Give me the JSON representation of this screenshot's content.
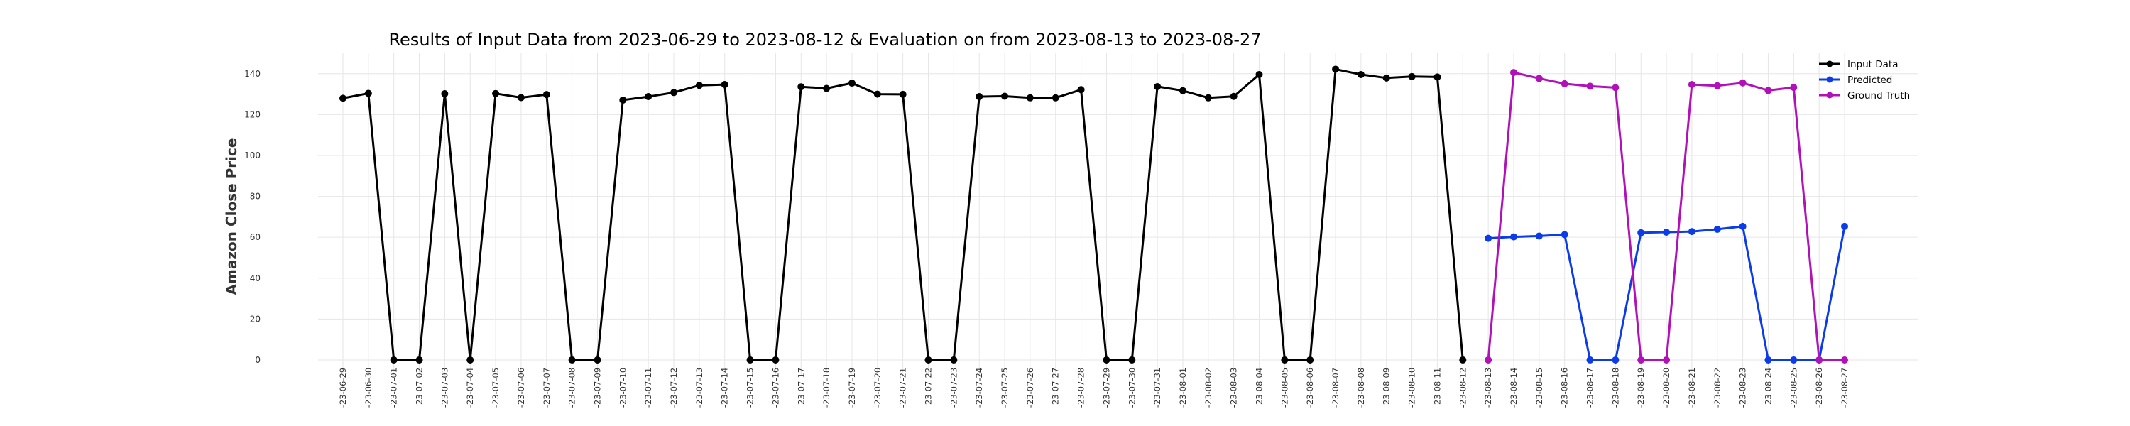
{
  "chart_data": {
    "type": "line",
    "title": "Results of Input Data from 2023-06-29 to 2023-08-12 & Evaluation on from 2023-08-13 to 2023-08-27",
    "xlabel": "",
    "ylabel": "Amazon Close Price",
    "ylim": [
      -8,
      150
    ],
    "yticks": [
      0,
      20,
      40,
      60,
      80,
      100,
      120,
      140
    ],
    "grid": true,
    "legend_position": "top-right",
    "categories": [
      "2023-06-29",
      "2023-06-30",
      "2023-07-01",
      "2023-07-02",
      "2023-07-03",
      "2023-07-04",
      "2023-07-05",
      "2023-07-06",
      "2023-07-07",
      "2023-07-08",
      "2023-07-09",
      "2023-07-10",
      "2023-07-11",
      "2023-07-12",
      "2023-07-13",
      "2023-07-14",
      "2023-07-15",
      "2023-07-16",
      "2023-07-17",
      "2023-07-18",
      "2023-07-19",
      "2023-07-20",
      "2023-07-21",
      "2023-07-22",
      "2023-07-23",
      "2023-07-24",
      "2023-07-25",
      "2023-07-26",
      "2023-07-27",
      "2023-07-28",
      "2023-07-29",
      "2023-07-30",
      "2023-07-31",
      "2023-08-01",
      "2023-08-02",
      "2023-08-03",
      "2023-08-04",
      "2023-08-05",
      "2023-08-06",
      "2023-08-07",
      "2023-08-08",
      "2023-08-09",
      "2023-08-10",
      "2023-08-11",
      "2023-08-12",
      "2023-08-13",
      "2023-08-14",
      "2023-08-15",
      "2023-08-16",
      "2023-08-17",
      "2023-08-18",
      "2023-08-19",
      "2023-08-20",
      "2023-08-21",
      "2023-08-22",
      "2023-08-23",
      "2023-08-24",
      "2023-08-25",
      "2023-08-26",
      "2023-08-27"
    ],
    "tick_labels": [
      "-23-06-29",
      "-23-06-30",
      "-23-07-01",
      "-23-07-02",
      "-23-07-03",
      "-23-07-04",
      "-23-07-05",
      "-23-07-06",
      "-23-07-07",
      "-23-07-08",
      "-23-07-09",
      "-23-07-10",
      "-23-07-11",
      "-23-07-12",
      "-23-07-13",
      "-23-07-14",
      "-23-07-15",
      "-23-07-16",
      "-23-07-17",
      "-23-07-18",
      "-23-07-19",
      "-23-07-20",
      "-23-07-21",
      "-23-07-22",
      "-23-07-23",
      "-23-07-24",
      "-23-07-25",
      "-23-07-26",
      "-23-07-27",
      "-23-07-28",
      "-23-07-29",
      "-23-07-30",
      "-23-07-31",
      "-23-08-01",
      "-23-08-02",
      "-23-08-03",
      "-23-08-04",
      "-23-08-05",
      "-23-08-06",
      "-23-08-07",
      "-23-08-08",
      "-23-08-09",
      "-23-08-10",
      "-23-08-11",
      "-23-08-12",
      "-23-08-13",
      "-23-08-14",
      "-23-08-15",
      "-23-08-16",
      "-23-08-17",
      "-23-08-18",
      "-23-08-19",
      "-23-08-20",
      "-23-08-21",
      "-23-08-22",
      "-23-08-23",
      "-23-08-24",
      "-23-08-25",
      "-23-08-26",
      "-23-08-27"
    ],
    "series": [
      {
        "name": "Input Data",
        "color": "#000000",
        "x": [
          "2023-06-29",
          "2023-06-30",
          "2023-07-01",
          "2023-07-02",
          "2023-07-03",
          "2023-07-04",
          "2023-07-05",
          "2023-07-06",
          "2023-07-07",
          "2023-07-08",
          "2023-07-09",
          "2023-07-10",
          "2023-07-11",
          "2023-07-12",
          "2023-07-13",
          "2023-07-14",
          "2023-07-15",
          "2023-07-16",
          "2023-07-17",
          "2023-07-18",
          "2023-07-19",
          "2023-07-20",
          "2023-07-21",
          "2023-07-22",
          "2023-07-23",
          "2023-07-24",
          "2023-07-25",
          "2023-07-26",
          "2023-07-27",
          "2023-07-28",
          "2023-07-29",
          "2023-07-30",
          "2023-07-31",
          "2023-08-01",
          "2023-08-02",
          "2023-08-03",
          "2023-08-04",
          "2023-08-05",
          "2023-08-06",
          "2023-08-07",
          "2023-08-08",
          "2023-08-09",
          "2023-08-10",
          "2023-08-11",
          "2023-08-12"
        ],
        "values": [
          128.0,
          130.4,
          0,
          0,
          130.2,
          0,
          130.3,
          128.3,
          129.8,
          0,
          0,
          127.1,
          128.8,
          130.8,
          134.3,
          134.7,
          0,
          0,
          133.6,
          132.8,
          135.4,
          130.0,
          129.9,
          0,
          0,
          128.8,
          129.0,
          128.2,
          128.2,
          132.2,
          0,
          0,
          133.7,
          131.7,
          128.2,
          128.9,
          139.6,
          0,
          0,
          142.2,
          139.6,
          137.9,
          138.6,
          138.4,
          0
        ]
      },
      {
        "name": "Predicted",
        "color": "#0b3ce8",
        "x": [
          "2023-08-13",
          "2023-08-14",
          "2023-08-15",
          "2023-08-16",
          "2023-08-17",
          "2023-08-18",
          "2023-08-19",
          "2023-08-20",
          "2023-08-21",
          "2023-08-22",
          "2023-08-23",
          "2023-08-24",
          "2023-08-25",
          "2023-08-26",
          "2023-08-27"
        ],
        "values": [
          59.5,
          60.2,
          60.6,
          61.3,
          0,
          0,
          62.2,
          62.5,
          62.8,
          63.9,
          65.3,
          0,
          0,
          0,
          65.3
        ]
      },
      {
        "name": "Ground Truth",
        "color": "#b012b8",
        "x": [
          "2023-08-13",
          "2023-08-14",
          "2023-08-15",
          "2023-08-16",
          "2023-08-17",
          "2023-08-18",
          "2023-08-19",
          "2023-08-20",
          "2023-08-21",
          "2023-08-22",
          "2023-08-23",
          "2023-08-24",
          "2023-08-25",
          "2023-08-26",
          "2023-08-27"
        ],
        "values": [
          0,
          140.6,
          137.7,
          135.1,
          133.9,
          133.2,
          0,
          0,
          134.7,
          134.1,
          135.5,
          131.8,
          133.3,
          0,
          0
        ]
      }
    ]
  }
}
